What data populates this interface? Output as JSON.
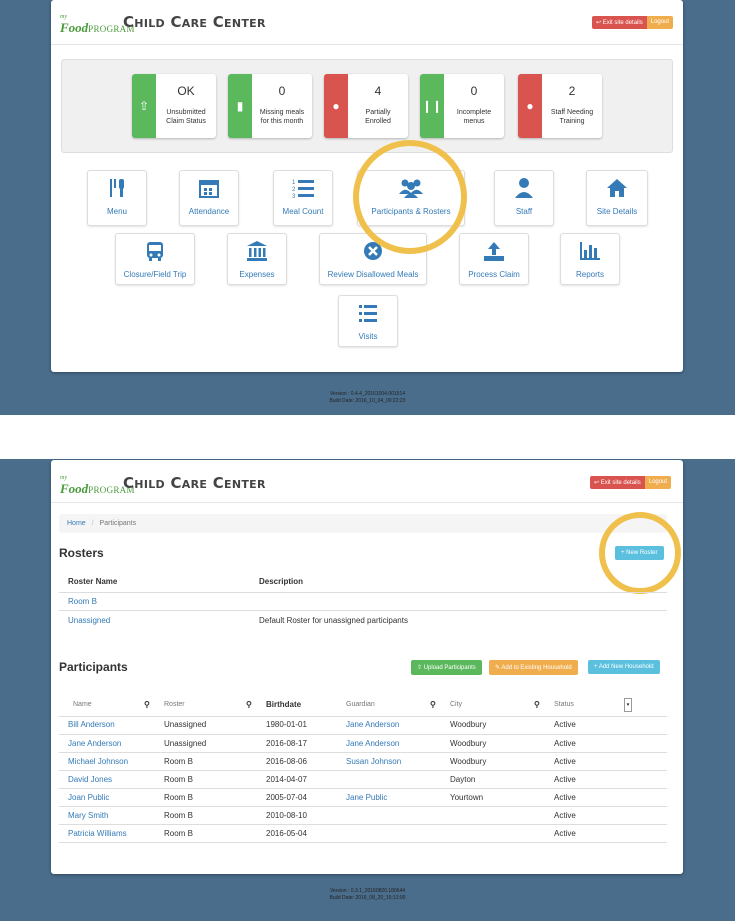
{
  "top": {
    "logo": {
      "my": "my",
      "brand": "Food",
      "program": "PROGRAM"
    },
    "site_title": "Child Care Center",
    "exit_label": "Exit site details",
    "logout_label": "Logout",
    "stats": [
      {
        "value": "OK",
        "label1": "Unsubmitted",
        "label2": "Claim Status",
        "color": "#5cb85c",
        "icon": "upload-icon"
      },
      {
        "value": "0",
        "label1": "Missing meals",
        "label2": "for this month",
        "color": "#5cb85c",
        "icon": "bar-chart-icon"
      },
      {
        "value": "4",
        "label1": "Partially",
        "label2": "Enrolled",
        "color": "#d9534f",
        "icon": "users-icon"
      },
      {
        "value": "0",
        "label1": "Incomplete",
        "label2": "menus",
        "color": "#5cb85c",
        "icon": "utensils-icon"
      },
      {
        "value": "2",
        "label1": "Staff Needing",
        "label2": "Training",
        "color": "#d9534f",
        "icon": "users-icon"
      }
    ],
    "tiles": {
      "menu": "Menu",
      "attendance": "Attendance",
      "meal_count": "Meal Count",
      "participants": "Participants & Rosters",
      "staff": "Staff",
      "site_details": "Site Details",
      "closure": "Closure/Field Trip",
      "expenses": "Expenses",
      "review": "Review Disallowed Meals",
      "process": "Process Claim",
      "reports": "Reports",
      "visits": "Visits"
    },
    "version": "Version : 0.4.4_20161004.001514",
    "build": "Build Date: 2016_10_04_00:22:23"
  },
  "bottom": {
    "site_title": "Child Care Center",
    "exit_label": "Exit site details",
    "logout_label": "Logout",
    "breadcrumb": {
      "home": "Home",
      "sep": "/",
      "current": "Participants"
    },
    "rosters_title": "Rosters",
    "new_roster": "+ New Roster",
    "roster_headers": {
      "name": "Roster Name",
      "desc": "Description"
    },
    "rosters": [
      {
        "name": "Room B",
        "desc": ""
      },
      {
        "name": "Unassigned",
        "desc": "Default Roster for unassigned participants"
      }
    ],
    "participants_title": "Participants",
    "upload_btn": "Upload Participants",
    "add_existing_btn": "Add to Existing Household",
    "add_new_btn": "+ Add New Household",
    "headers": {
      "name": "Name",
      "roster": "Roster",
      "birthdate": "Birthdate",
      "guardian": "Guardian",
      "city": "City",
      "status": "Status"
    },
    "participants": [
      {
        "name": "Bill Anderson",
        "roster": "Unassigned",
        "birthdate": "1980-01-01",
        "guardian": "Jane Anderson",
        "city": "Woodbury",
        "status": "Active"
      },
      {
        "name": "Jane Anderson",
        "roster": "Unassigned",
        "birthdate": "2016-08-17",
        "guardian": "Jane Anderson",
        "city": "Woodbury",
        "status": "Active"
      },
      {
        "name": "Michael Johnson",
        "roster": "Room B",
        "birthdate": "2016-08-06",
        "guardian": "Susan Johnson",
        "city": "Woodbury",
        "status": "Active"
      },
      {
        "name": "David Jones",
        "roster": "Room B",
        "birthdate": "2014-04-07",
        "guardian": "",
        "city": "Dayton",
        "status": "Active"
      },
      {
        "name": "Joan Public",
        "roster": "Room B",
        "birthdate": "2005-07-04",
        "guardian": "Jane Public",
        "city": "Yourtown",
        "status": "Active"
      },
      {
        "name": "Mary Smith",
        "roster": "Room B",
        "birthdate": "2010-08-10",
        "guardian": "",
        "city": "",
        "status": "Active"
      },
      {
        "name": "Patricia Williams",
        "roster": "Room B",
        "birthdate": "2016-05-04",
        "guardian": "",
        "city": "",
        "status": "Active"
      }
    ],
    "version": "Version : 0.3.1_20160820.180644",
    "build": "Build Date: 2016_08_20_15:13:00"
  },
  "colors": {
    "background": "#4a6d8c",
    "link": "#337ab7",
    "highlight_ring": "#f0c04d",
    "danger": "#d9534f",
    "success": "#5cb85c",
    "warning": "#f0ad4e",
    "info": "#5bc0de"
  }
}
